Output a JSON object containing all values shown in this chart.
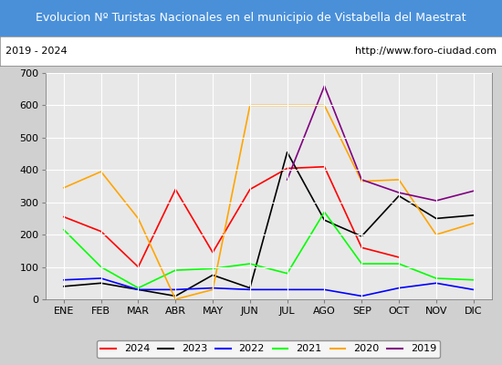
{
  "title": "Evolucion Nº Turistas Nacionales en el municipio de Vistabella del Maestrat",
  "subtitle_left": "2019 - 2024",
  "subtitle_right": "http://www.foro-ciudad.com",
  "title_bg": "#4a90d9",
  "title_color": "white",
  "months": [
    "ENE",
    "FEB",
    "MAR",
    "ABR",
    "MAY",
    "JUN",
    "JUL",
    "AGO",
    "SEP",
    "OCT",
    "NOV",
    "DIC"
  ],
  "ylim": [
    0,
    700
  ],
  "yticks": [
    0,
    100,
    200,
    300,
    400,
    500,
    600,
    700
  ],
  "series": {
    "2024": {
      "color": "red",
      "values": [
        255,
        210,
        100,
        340,
        145,
        340,
        405,
        410,
        160,
        130,
        null,
        null
      ]
    },
    "2023": {
      "color": "black",
      "values": [
        40,
        50,
        30,
        10,
        75,
        35,
        455,
        245,
        195,
        320,
        250,
        260
      ]
    },
    "2022": {
      "color": "blue",
      "values": [
        60,
        65,
        30,
        30,
        35,
        30,
        30,
        30,
        10,
        35,
        50,
        30
      ]
    },
    "2021": {
      "color": "lime",
      "values": [
        215,
        100,
        35,
        90,
        95,
        110,
        80,
        270,
        110,
        110,
        65,
        60
      ]
    },
    "2020": {
      "color": "orange",
      "values": [
        345,
        395,
        250,
        0,
        30,
        600,
        600,
        600,
        365,
        370,
        200,
        235
      ]
    },
    "2019": {
      "color": "purple",
      "values": [
        null,
        null,
        null,
        null,
        null,
        null,
        370,
        660,
        370,
        330,
        305,
        335
      ]
    }
  },
  "legend_order": [
    "2024",
    "2023",
    "2022",
    "2021",
    "2020",
    "2019"
  ],
  "bg_color": "#d0d0d0",
  "plot_bg": "#e8e8e8",
  "grid_color": "white",
  "title_fontsize": 9,
  "subtitle_fontsize": 8,
  "tick_fontsize": 8
}
